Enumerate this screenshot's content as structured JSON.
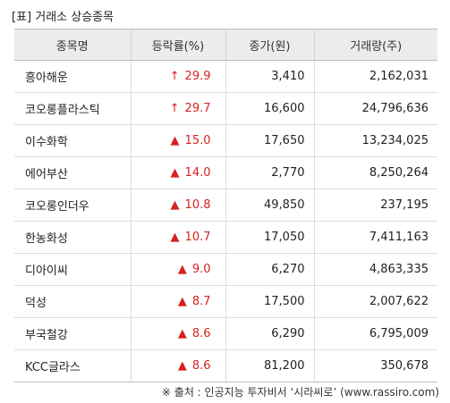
{
  "title": "[표] 거래소 상승종목",
  "headers": [
    "종목명",
    "등락률(%)",
    "종가(원)",
    "거래량(주)"
  ],
  "rows": [
    {
      "name": "흥아해운",
      "symbol": "↑",
      "rate": "29.9",
      "price": "3,410",
      "volume": "2,162,031"
    },
    {
      "name": "코오롱플라스틱",
      "symbol": "↑",
      "rate": "29.7",
      "price": "16,600",
      "volume": "24,796,636"
    },
    {
      "name": "이수화학",
      "symbol": "▲",
      "rate": "15.0",
      "price": "17,650",
      "volume": "13,234,025"
    },
    {
      "name": "에어부산",
      "symbol": "▲",
      "rate": "14.0",
      "price": "2,770",
      "volume": "8,250,264"
    },
    {
      "name": "코오롱인더우",
      "symbol": "▲",
      "rate": "10.8",
      "price": "49,850",
      "volume": "237,195"
    },
    {
      "name": "한농화성",
      "symbol": "▲",
      "rate": "10.7",
      "price": "17,050",
      "volume": "7,411,163"
    },
    {
      "name": "디아이씨",
      "symbol": "▲",
      "rate": "9.0",
      "price": "6,270",
      "volume": "4,863,335"
    },
    {
      "name": "덕성",
      "symbol": "▲",
      "rate": "8.7",
      "price": "17,500",
      "volume": "2,007,622"
    },
    {
      "name": "부국철강",
      "symbol": "▲",
      "rate": "8.6",
      "price": "6,290",
      "volume": "6,795,009"
    },
    {
      "name": "KCC글라스",
      "symbol": "▲",
      "rate": "8.6",
      "price": "81,200",
      "volume": "350,678"
    }
  ],
  "source": "※ 출처 : 인공지능 투자비서 ‘시라씨로’ (www.rassiro.com)",
  "colors": {
    "up": "#d6211f",
    "header_bg": "#ececec"
  }
}
